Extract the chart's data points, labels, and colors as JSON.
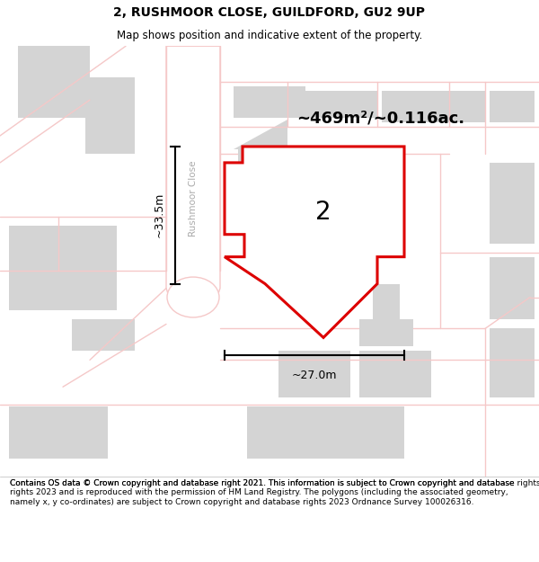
{
  "title": "2, RUSHMOOR CLOSE, GUILDFORD, GU2 9UP",
  "subtitle": "Map shows position and indicative extent of the property.",
  "area_label": "~469m²/~0.116ac.",
  "number_label": "2",
  "width_label": "~27.0m",
  "height_label": "~33.5m",
  "footer": "Contains OS data © Crown copyright and database right 2021. This information is subject to Crown copyright and database rights 2023 and is reproduced with the permission of HM Land Registry. The polygons (including the associated geometry, namely x, y co-ordinates) are subject to Crown copyright and database rights 2023 Ordnance Survey 100026316.",
  "map_bg": "#ffffff",
  "road_color": "#f5c8c8",
  "building_color": "#d4d4d4",
  "highlight_color": "#dd0000",
  "street_label": "Rushmoor Close",
  "title_fontsize": 10,
  "subtitle_fontsize": 8.5,
  "footer_fontsize": 6.5
}
